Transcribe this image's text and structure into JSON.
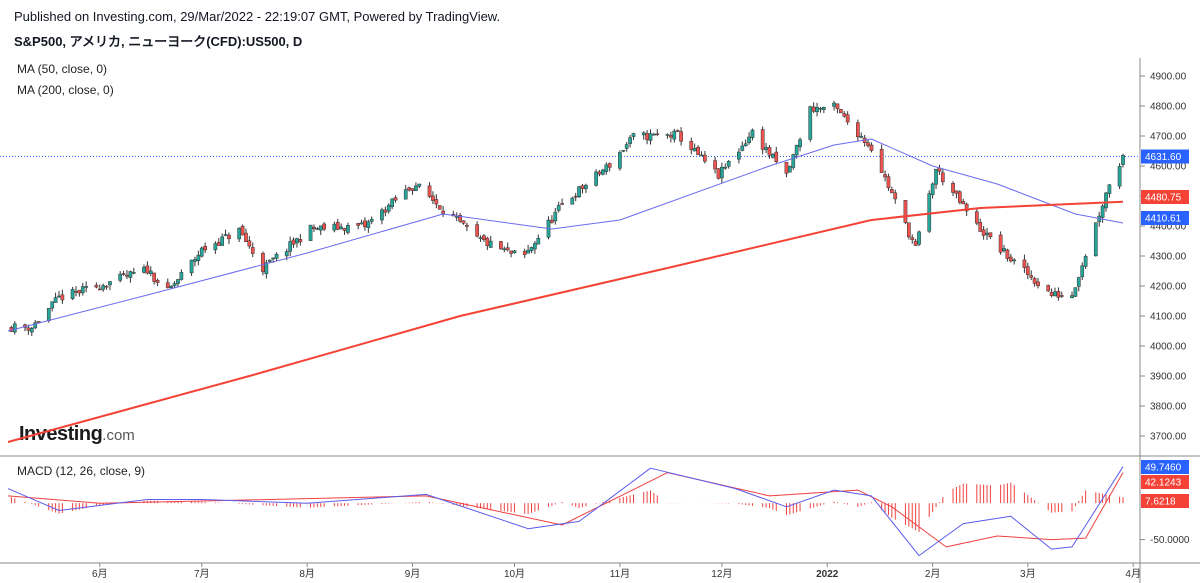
{
  "header": {
    "published": "Published on Investing.com, 29/Mar/2022 - 22:19:07 GMT, Powered by TradingView.",
    "symbol": "S&P500, アメリカ, ニューヨーク(CFD):US500, D"
  },
  "brand": {
    "name": "Investing",
    "domain": ".com"
  },
  "colors": {
    "up": "#26a69a",
    "down": "#ef5350",
    "ma50": "#6b6bef",
    "ma200": "#f44336",
    "macd": "#5b5bf0",
    "signal": "#f04040",
    "last_price": "#2962ff"
  },
  "chart_data": [
    {
      "type": "candlestick",
      "indicators": [
        "MA (50, close, 0)",
        "MA (200, close, 0)"
      ],
      "ylim": [
        3640,
        4960
      ],
      "y_ticks": [
        "3700.00",
        "3800.00",
        "3900.00",
        "4000.00",
        "4100.00",
        "4200.00",
        "4300.00",
        "4400.00",
        "4500.00",
        "4600.00",
        "4700.00",
        "4800.00",
        "4900.00"
      ],
      "x_ticks": [
        "6月",
        "7月",
        "8月",
        "9月",
        "10月",
        "11月",
        "12月",
        "2022",
        "2月",
        "3月",
        "4月"
      ],
      "last_values": {
        "price": "4631.60",
        "ma200": "4480.75",
        "ma50": "4410.61"
      },
      "close_path": [
        [
          "2021-05-12",
          4063
        ],
        [
          "2021-05-20",
          4160
        ],
        [
          "2021-06-01",
          4202
        ],
        [
          "2021-06-15",
          4255
        ],
        [
          "2021-06-21",
          4180
        ],
        [
          "2021-07-01",
          4320
        ],
        [
          "2021-07-12",
          4385
        ],
        [
          "2021-07-19",
          4258
        ],
        [
          "2021-08-02",
          4390
        ],
        [
          "2021-08-18",
          4400
        ],
        [
          "2021-08-31",
          4525
        ],
        [
          "2021-09-02",
          4537
        ],
        [
          "2021-09-20",
          4357
        ],
        [
          "2021-09-30",
          4307
        ],
        [
          "2021-10-04",
          4300
        ],
        [
          "2021-10-15",
          4471
        ],
        [
          "2021-10-29",
          4605
        ],
        [
          "2021-11-05",
          4697
        ],
        [
          "2021-11-18",
          4704
        ],
        [
          "2021-11-30",
          4567
        ],
        [
          "2021-12-10",
          4712
        ],
        [
          "2021-12-20",
          4568
        ],
        [
          "2021-12-27",
          4791
        ],
        [
          "2022-01-03",
          4796
        ],
        [
          "2022-01-14",
          4662
        ],
        [
          "2022-01-27",
          4326
        ],
        [
          "2022-02-02",
          4589
        ],
        [
          "2022-02-14",
          4401
        ],
        [
          "2022-02-24",
          4288
        ],
        [
          "2022-03-08",
          4170
        ],
        [
          "2022-03-14",
          4173
        ],
        [
          "2022-03-25",
          4543
        ],
        [
          "2022-03-29",
          4631
        ]
      ],
      "ma50_path": [
        [
          "2021-05-05",
          4050
        ],
        [
          "2021-06-15",
          4170
        ],
        [
          "2021-08-01",
          4310
        ],
        [
          "2021-09-10",
          4440
        ],
        [
          "2021-10-12",
          4390
        ],
        [
          "2021-11-01",
          4420
        ],
        [
          "2021-12-15",
          4600
        ],
        [
          "2022-01-03",
          4670
        ],
        [
          "2022-01-14",
          4690
        ],
        [
          "2022-02-01",
          4600
        ],
        [
          "2022-02-20",
          4540
        ],
        [
          "2022-03-15",
          4440
        ],
        [
          "2022-03-29",
          4410
        ]
      ],
      "ma200_path": [
        [
          "2021-05-05",
          3680
        ],
        [
          "2021-07-15",
          3900
        ],
        [
          "2021-09-15",
          4100
        ],
        [
          "2021-11-15",
          4260
        ],
        [
          "2022-01-14",
          4420
        ],
        [
          "2022-02-15",
          4460
        ],
        [
          "2022-03-29",
          4481
        ]
      ]
    },
    {
      "type": "line",
      "title": "MACD (12, 26, close, 9)",
      "ylim": [
        -78,
        62
      ],
      "y_ticks": [
        "-50.0000"
      ],
      "last_values": {
        "macd": "49.7460",
        "signal": "42.1243",
        "histogram": "7.6218"
      },
      "macd_path": [
        [
          "2021-05-05",
          20
        ],
        [
          "2021-05-20",
          -10
        ],
        [
          "2021-06-15",
          5
        ],
        [
          "2021-07-01",
          5
        ],
        [
          "2021-08-01",
          0
        ],
        [
          "2021-09-05",
          12
        ],
        [
          "2021-10-05",
          -35
        ],
        [
          "2021-10-20",
          -25
        ],
        [
          "2021-11-10",
          48
        ],
        [
          "2021-12-05",
          20
        ],
        [
          "2021-12-20",
          -5
        ],
        [
          "2022-01-03",
          18
        ],
        [
          "2022-01-14",
          10
        ],
        [
          "2022-01-28",
          -72
        ],
        [
          "2022-02-10",
          -28
        ],
        [
          "2022-02-24",
          -18
        ],
        [
          "2022-03-08",
          -63
        ],
        [
          "2022-03-14",
          -60
        ],
        [
          "2022-03-29",
          50
        ]
      ],
      "signal_path": [
        [
          "2021-05-05",
          10
        ],
        [
          "2021-06-01",
          0
        ],
        [
          "2021-07-01",
          3
        ],
        [
          "2021-09-05",
          10
        ],
        [
          "2021-10-15",
          -30
        ],
        [
          "2021-11-15",
          42
        ],
        [
          "2021-12-15",
          10
        ],
        [
          "2022-01-10",
          18
        ],
        [
          "2022-01-20",
          -5
        ],
        [
          "2022-02-05",
          -60
        ],
        [
          "2022-02-20",
          -45
        ],
        [
          "2022-03-08",
          -50
        ],
        [
          "2022-03-18",
          -48
        ],
        [
          "2022-03-29",
          42
        ]
      ]
    }
  ]
}
